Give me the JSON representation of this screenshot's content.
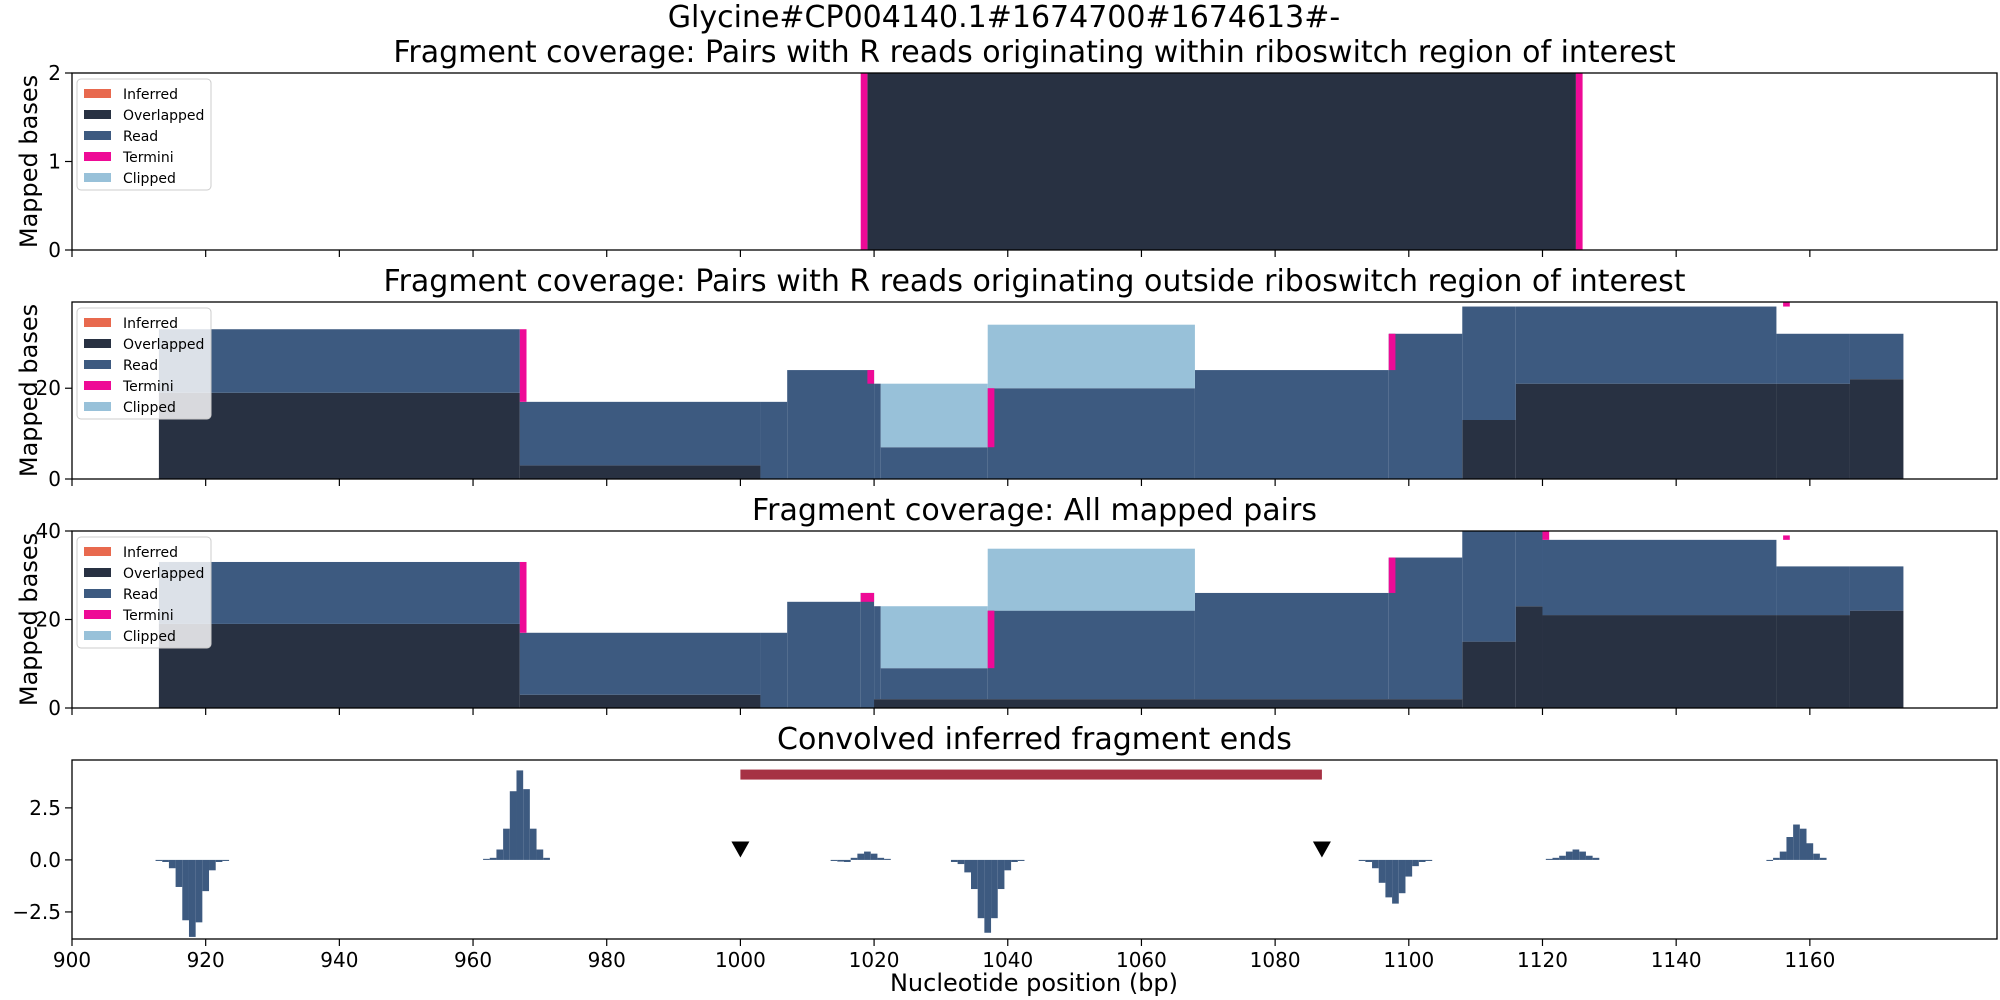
{
  "figure": {
    "suptitle": "Glycine#CP004140.1#1674700#1674613#-",
    "xlabel": "Nucleotide position (bp)",
    "xlim": [
      900,
      1188
    ],
    "xticks": [
      900,
      920,
      940,
      960,
      980,
      1000,
      1020,
      1040,
      1060,
      1080,
      1100,
      1120,
      1140,
      1160
    ]
  },
  "chart_data": [
    {
      "type": "area",
      "title": "Fragment coverage: Pairs with R reads originating within riboswitch region of interest",
      "ylabel": "Mapped bases",
      "ylim": [
        0,
        2
      ],
      "yticks": [
        0,
        1,
        2
      ],
      "legend_position": "top-left",
      "legend": [
        {
          "name": "Inferred",
          "color": "#e8694e"
        },
        {
          "name": "Overlapped",
          "color": "#283142"
        },
        {
          "name": "Read",
          "color": "#3d5a80"
        },
        {
          "name": "Termini",
          "color": "#ee0a96"
        },
        {
          "name": "Clipped",
          "color": "#98c1d9"
        }
      ],
      "layers": [
        {
          "series": "Overlapped",
          "segments": [
            [
              1019,
              1125,
              0,
              2
            ]
          ]
        },
        {
          "series": "Termini",
          "segments": [
            [
              1018,
              1019,
              0,
              2
            ],
            [
              1125,
              1126,
              0,
              2
            ]
          ]
        }
      ]
    },
    {
      "type": "area",
      "title": "Fragment coverage: Pairs with R reads originating outside riboswitch region of interest",
      "ylabel": "Mapped bases",
      "ylim": [
        0,
        39
      ],
      "yticks": [
        0,
        20
      ],
      "legend_position": "top-left",
      "legend": [
        {
          "name": "Inferred",
          "color": "#e8694e"
        },
        {
          "name": "Overlapped",
          "color": "#283142"
        },
        {
          "name": "Read",
          "color": "#3d5a80"
        },
        {
          "name": "Termini",
          "color": "#ee0a96"
        },
        {
          "name": "Clipped",
          "color": "#98c1d9"
        }
      ],
      "layers": [
        {
          "series": "Overlapped",
          "segments": [
            [
              913,
              967,
              0,
              19
            ],
            [
              967,
              1003,
              0,
              3
            ],
            [
              1108,
              1116,
              0,
              13
            ],
            [
              1116,
              1155,
              0,
              21
            ],
            [
              1155,
              1166,
              0,
              21
            ],
            [
              1166,
              1174,
              0,
              22
            ]
          ]
        },
        {
          "series": "Read",
          "segments": [
            [
              913,
              967,
              19,
              33
            ],
            [
              967,
              1003,
              3,
              17
            ],
            [
              1003,
              1007,
              0,
              17
            ],
            [
              1007,
              1020,
              0,
              24
            ],
            [
              1020,
              1021,
              0,
              21
            ],
            [
              1021,
              1037,
              0,
              7
            ],
            [
              1037,
              1068,
              0,
              20
            ],
            [
              1068,
              1097,
              0,
              24
            ],
            [
              1097,
              1108,
              0,
              32
            ],
            [
              1108,
              1116,
              13,
              38
            ],
            [
              1116,
              1155,
              21,
              38
            ],
            [
              1155,
              1166,
              21,
              32
            ],
            [
              1166,
              1174,
              22,
              32
            ]
          ]
        },
        {
          "series": "Clipped",
          "segments": [
            [
              1021,
              1037,
              7,
              21
            ],
            [
              1037,
              1068,
              20,
              34
            ]
          ]
        },
        {
          "series": "Termini",
          "segments": [
            [
              967,
              968,
              17,
              33
            ],
            [
              1019,
              1020,
              21,
              24
            ],
            [
              1037,
              1038,
              7,
              20
            ],
            [
              1097,
              1098,
              24,
              32
            ],
            [
              1156,
              1157,
              38,
              39
            ]
          ]
        }
      ]
    },
    {
      "type": "area",
      "title": "Fragment coverage: All mapped pairs",
      "ylabel": "Mapped bases",
      "ylim": [
        0,
        40
      ],
      "yticks": [
        0,
        20,
        40
      ],
      "legend_position": "top-left",
      "legend": [
        {
          "name": "Inferred",
          "color": "#e8694e"
        },
        {
          "name": "Overlapped",
          "color": "#283142"
        },
        {
          "name": "Read",
          "color": "#3d5a80"
        },
        {
          "name": "Termini",
          "color": "#ee0a96"
        },
        {
          "name": "Clipped",
          "color": "#98c1d9"
        }
      ],
      "layers": [
        {
          "series": "Overlapped",
          "segments": [
            [
              913,
              967,
              0,
              19
            ],
            [
              967,
              1003,
              0,
              3
            ],
            [
              1019,
              1108,
              0,
              2
            ],
            [
              1108,
              1116,
              0,
              15
            ],
            [
              1116,
              1120,
              0,
              23
            ],
            [
              1120,
              1155,
              0,
              21
            ],
            [
              1155,
              1166,
              0,
              21
            ],
            [
              1166,
              1174,
              0,
              22
            ]
          ]
        },
        {
          "series": "Read",
          "segments": [
            [
              913,
              967,
              19,
              33
            ],
            [
              967,
              1003,
              3,
              17
            ],
            [
              1003,
              1007,
              0,
              17
            ],
            [
              1007,
              1018,
              0,
              24
            ],
            [
              1018,
              1020,
              0,
              26
            ],
            [
              1020,
              1021,
              2,
              23
            ],
            [
              1021,
              1037,
              2,
              9
            ],
            [
              1037,
              1068,
              2,
              22
            ],
            [
              1068,
              1097,
              2,
              26
            ],
            [
              1097,
              1108,
              2,
              34
            ],
            [
              1108,
              1116,
              15,
              40
            ],
            [
              1116,
              1120,
              23,
              40
            ],
            [
              1120,
              1155,
              21,
              38
            ],
            [
              1155,
              1166,
              21,
              32
            ],
            [
              1166,
              1174,
              22,
              32
            ]
          ]
        },
        {
          "series": "Clipped",
          "segments": [
            [
              1021,
              1037,
              9,
              23
            ],
            [
              1037,
              1068,
              22,
              36
            ]
          ]
        },
        {
          "series": "Termini",
          "segments": [
            [
              967,
              968,
              17,
              33
            ],
            [
              1018,
              1020,
              24,
              26
            ],
            [
              1037,
              1038,
              9,
              22
            ],
            [
              1097,
              1098,
              26,
              34
            ],
            [
              1120,
              1121,
              38,
              40
            ],
            [
              1156,
              1157,
              38,
              39
            ]
          ]
        }
      ]
    },
    {
      "type": "bar",
      "title": "Convolved inferred fragment ends",
      "ylabel": "",
      "ylim": [
        -3.8,
        4.8
      ],
      "yticks": [
        -2.5,
        0.0,
        2.5
      ],
      "ytick_labels": [
        "−2.5",
        "0.0",
        "2.5"
      ],
      "color": "#3d5a80",
      "bars": [
        [
          913,
          -0.05
        ],
        [
          914,
          -0.1
        ],
        [
          915,
          -0.4
        ],
        [
          916,
          -1.3
        ],
        [
          917,
          -2.9
        ],
        [
          918,
          -3.7
        ],
        [
          919,
          -3.0
        ],
        [
          920,
          -1.5
        ],
        [
          921,
          -0.5
        ],
        [
          922,
          -0.1
        ],
        [
          923,
          -0.05
        ],
        [
          962,
          0.05
        ],
        [
          963,
          0.1
        ],
        [
          964,
          0.5
        ],
        [
          965,
          1.5
        ],
        [
          966,
          3.3
        ],
        [
          967,
          4.3
        ],
        [
          968,
          3.4
        ],
        [
          969,
          1.5
        ],
        [
          970,
          0.5
        ],
        [
          971,
          0.1
        ],
        [
          1014,
          -0.05
        ],
        [
          1015,
          -0.08
        ],
        [
          1016,
          -0.1
        ],
        [
          1017,
          0.1
        ],
        [
          1018,
          0.3
        ],
        [
          1019,
          0.4
        ],
        [
          1020,
          0.3
        ],
        [
          1021,
          0.1
        ],
        [
          1022,
          0.05
        ],
        [
          1032,
          -0.1
        ],
        [
          1033,
          -0.2
        ],
        [
          1034,
          -0.6
        ],
        [
          1035,
          -1.4
        ],
        [
          1036,
          -2.8
        ],
        [
          1037,
          -3.5
        ],
        [
          1038,
          -2.8
        ],
        [
          1039,
          -1.4
        ],
        [
          1040,
          -0.5
        ],
        [
          1041,
          -0.1
        ],
        [
          1042,
          -0.05
        ],
        [
          1093,
          -0.05
        ],
        [
          1094,
          -0.1
        ],
        [
          1095,
          -0.4
        ],
        [
          1096,
          -1.1
        ],
        [
          1097,
          -1.8
        ],
        [
          1098,
          -2.1
        ],
        [
          1099,
          -1.6
        ],
        [
          1100,
          -0.8
        ],
        [
          1101,
          -0.3
        ],
        [
          1102,
          -0.1
        ],
        [
          1103,
          -0.05
        ],
        [
          1121,
          0.05
        ],
        [
          1122,
          0.1
        ],
        [
          1123,
          0.2
        ],
        [
          1124,
          0.4
        ],
        [
          1125,
          0.5
        ],
        [
          1126,
          0.4
        ],
        [
          1127,
          0.2
        ],
        [
          1128,
          0.1
        ],
        [
          1154,
          -0.05
        ],
        [
          1155,
          0.1
        ],
        [
          1156,
          0.4
        ],
        [
          1157,
          1.1
        ],
        [
          1158,
          1.7
        ],
        [
          1159,
          1.5
        ],
        [
          1160,
          0.8
        ],
        [
          1161,
          0.3
        ],
        [
          1162,
          0.1
        ]
      ],
      "region_bar": {
        "x0": 1000,
        "x1": 1087,
        "y": 4.1,
        "color": "#a63244"
      },
      "markers": [
        {
          "x": 1000,
          "y": 0.5
        },
        {
          "x": 1087,
          "y": 0.5
        }
      ]
    }
  ]
}
